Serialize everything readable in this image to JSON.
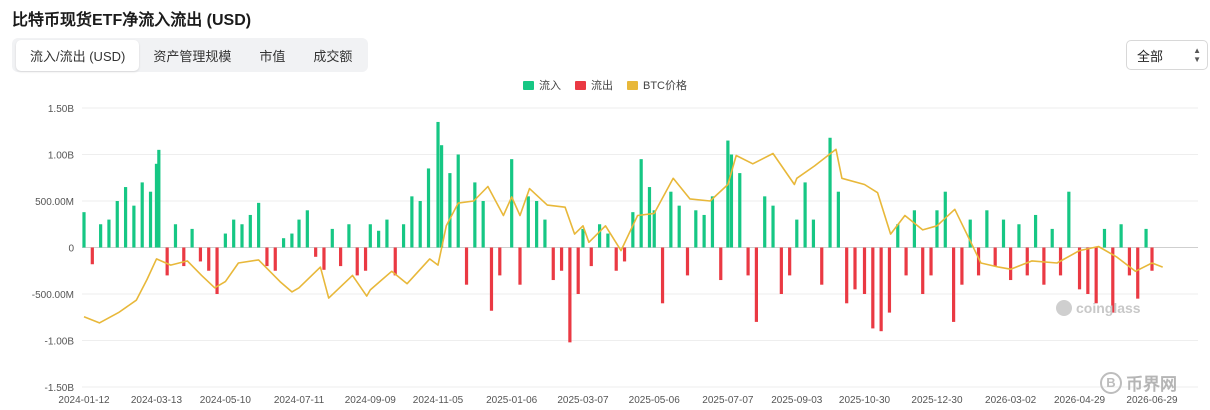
{
  "page": {
    "title": "比特币现货ETF净流入流出 (USD)"
  },
  "tabs": [
    {
      "label": "流入/流出 (USD)",
      "active": true
    },
    {
      "label": "资产管理规模",
      "active": false
    },
    {
      "label": "市值",
      "active": false
    },
    {
      "label": "成交额",
      "active": false
    }
  ],
  "filter": {
    "selected": "全部"
  },
  "legend": [
    {
      "label": "流入",
      "color": "#16c784"
    },
    {
      "label": "流出",
      "color": "#ea3943"
    },
    {
      "label": "BTC价格",
      "color": "#e8b83a"
    }
  ],
  "watermark": "coinglass",
  "logo": {
    "text": "币界网",
    "icon_text": "B"
  },
  "chart_data": {
    "type": "bar",
    "y_ticks": [
      "1.50B",
      "1.00B",
      "500.00M",
      "0",
      "-500.00M",
      "-1.00B",
      "-1.50B"
    ],
    "ylim": [
      -1500000000,
      1500000000
    ],
    "x_ticks": [
      "2024-01-12",
      "2024-03-13",
      "2024-05-10",
      "2024-07-11",
      "2024-09-09",
      "2024-11-05",
      "2025-01-06",
      "2025-03-07",
      "2025-05-06",
      "2025-07-07",
      "2025-09-03",
      "2025-10-30",
      "2025-12-30",
      "2026-03-02",
      "2026-04-29",
      "2026-06-29"
    ],
    "colors": {
      "inflow": "#16c784",
      "outflow": "#ea3943",
      "price": "#e8b83a"
    },
    "flows_musd": [
      {
        "date": "2024-01-12",
        "v": 380
      },
      {
        "date": "2024-01-19",
        "v": -180
      },
      {
        "date": "2024-01-26",
        "v": 250
      },
      {
        "date": "2024-02-02",
        "v": 300
      },
      {
        "date": "2024-02-09",
        "v": 500
      },
      {
        "date": "2024-02-16",
        "v": 650
      },
      {
        "date": "2024-02-23",
        "v": 450
      },
      {
        "date": "2024-03-01",
        "v": 700
      },
      {
        "date": "2024-03-08",
        "v": 600
      },
      {
        "date": "2024-03-13",
        "v": 900
      },
      {
        "date": "2024-03-15",
        "v": 1050
      },
      {
        "date": "2024-03-22",
        "v": -300
      },
      {
        "date": "2024-03-29",
        "v": 250
      },
      {
        "date": "2024-04-05",
        "v": -200
      },
      {
        "date": "2024-04-12",
        "v": 200
      },
      {
        "date": "2024-04-19",
        "v": -150
      },
      {
        "date": "2024-04-26",
        "v": -250
      },
      {
        "date": "2024-05-03",
        "v": -500
      },
      {
        "date": "2024-05-10",
        "v": 150
      },
      {
        "date": "2024-05-17",
        "v": 300
      },
      {
        "date": "2024-05-24",
        "v": 250
      },
      {
        "date": "2024-05-31",
        "v": 350
      },
      {
        "date": "2024-06-07",
        "v": 480
      },
      {
        "date": "2024-06-14",
        "v": -200
      },
      {
        "date": "2024-06-21",
        "v": -250
      },
      {
        "date": "2024-06-28",
        "v": 100
      },
      {
        "date": "2024-07-05",
        "v": 150
      },
      {
        "date": "2024-07-11",
        "v": 300
      },
      {
        "date": "2024-07-18",
        "v": 400
      },
      {
        "date": "2024-07-25",
        "v": -100
      },
      {
        "date": "2024-08-01",
        "v": -240
      },
      {
        "date": "2024-08-08",
        "v": 200
      },
      {
        "date": "2024-08-15",
        "v": -200
      },
      {
        "date": "2024-08-22",
        "v": 250
      },
      {
        "date": "2024-08-29",
        "v": -300
      },
      {
        "date": "2024-09-05",
        "v": -250
      },
      {
        "date": "2024-09-09",
        "v": 250
      },
      {
        "date": "2024-09-16",
        "v": 180
      },
      {
        "date": "2024-09-23",
        "v": 300
      },
      {
        "date": "2024-09-30",
        "v": -300
      },
      {
        "date": "2024-10-07",
        "v": 250
      },
      {
        "date": "2024-10-14",
        "v": 550
      },
      {
        "date": "2024-10-21",
        "v": 500
      },
      {
        "date": "2024-10-28",
        "v": 850
      },
      {
        "date": "2024-11-05",
        "v": 1350
      },
      {
        "date": "2024-11-08",
        "v": 1100
      },
      {
        "date": "2024-11-15",
        "v": 800
      },
      {
        "date": "2024-11-22",
        "v": 1000
      },
      {
        "date": "2024-11-29",
        "v": -400
      },
      {
        "date": "2024-12-06",
        "v": 700
      },
      {
        "date": "2024-12-13",
        "v": 500
      },
      {
        "date": "2024-12-20",
        "v": -680
      },
      {
        "date": "2024-12-27",
        "v": -300
      },
      {
        "date": "2025-01-06",
        "v": 950
      },
      {
        "date": "2025-01-13",
        "v": -400
      },
      {
        "date": "2025-01-20",
        "v": 550
      },
      {
        "date": "2025-01-27",
        "v": 500
      },
      {
        "date": "2025-02-03",
        "v": 300
      },
      {
        "date": "2025-02-10",
        "v": -350
      },
      {
        "date": "2025-02-17",
        "v": -250
      },
      {
        "date": "2025-02-24",
        "v": -1020
      },
      {
        "date": "2025-03-03",
        "v": -500
      },
      {
        "date": "2025-03-07",
        "v": 200
      },
      {
        "date": "2025-03-14",
        "v": -200
      },
      {
        "date": "2025-03-21",
        "v": 250
      },
      {
        "date": "2025-03-28",
        "v": 150
      },
      {
        "date": "2025-04-04",
        "v": -250
      },
      {
        "date": "2025-04-11",
        "v": -150
      },
      {
        "date": "2025-04-18",
        "v": 380
      },
      {
        "date": "2025-04-25",
        "v": 950
      },
      {
        "date": "2025-05-02",
        "v": 650
      },
      {
        "date": "2025-05-06",
        "v": 400
      },
      {
        "date": "2025-05-13",
        "v": -600
      },
      {
        "date": "2025-05-20",
        "v": 600
      },
      {
        "date": "2025-05-27",
        "v": 450
      },
      {
        "date": "2025-06-03",
        "v": -300
      },
      {
        "date": "2025-06-10",
        "v": 400
      },
      {
        "date": "2025-06-17",
        "v": 350
      },
      {
        "date": "2025-06-24",
        "v": 550
      },
      {
        "date": "2025-07-01",
        "v": -350
      },
      {
        "date": "2025-07-07",
        "v": 1150
      },
      {
        "date": "2025-07-10",
        "v": 1000
      },
      {
        "date": "2025-07-17",
        "v": 800
      },
      {
        "date": "2025-07-24",
        "v": -300
      },
      {
        "date": "2025-07-31",
        "v": -800
      },
      {
        "date": "2025-08-07",
        "v": 550
      },
      {
        "date": "2025-08-14",
        "v": 450
      },
      {
        "date": "2025-08-21",
        "v": -500
      },
      {
        "date": "2025-08-28",
        "v": -300
      },
      {
        "date": "2025-09-03",
        "v": 300
      },
      {
        "date": "2025-09-10",
        "v": 700
      },
      {
        "date": "2025-09-17",
        "v": 300
      },
      {
        "date": "2025-09-24",
        "v": -400
      },
      {
        "date": "2025-10-01",
        "v": 1180
      },
      {
        "date": "2025-10-08",
        "v": 600
      },
      {
        "date": "2025-10-15",
        "v": -600
      },
      {
        "date": "2025-10-22",
        "v": -450
      },
      {
        "date": "2025-10-30",
        "v": -500
      },
      {
        "date": "2025-11-06",
        "v": -870
      },
      {
        "date": "2025-11-13",
        "v": -900
      },
      {
        "date": "2025-11-20",
        "v": -700
      },
      {
        "date": "2025-11-27",
        "v": 250
      },
      {
        "date": "2025-12-04",
        "v": -300
      },
      {
        "date": "2025-12-11",
        "v": 400
      },
      {
        "date": "2025-12-18",
        "v": -500
      },
      {
        "date": "2025-12-25",
        "v": -300
      },
      {
        "date": "2025-12-30",
        "v": 400
      },
      {
        "date": "2026-01-06",
        "v": 600
      },
      {
        "date": "2026-01-13",
        "v": -800
      },
      {
        "date": "2026-01-20",
        "v": -400
      },
      {
        "date": "2026-01-27",
        "v": 300
      },
      {
        "date": "2026-02-03",
        "v": -300
      },
      {
        "date": "2026-02-10",
        "v": 400
      },
      {
        "date": "2026-02-17",
        "v": -200
      },
      {
        "date": "2026-02-24",
        "v": 300
      },
      {
        "date": "2026-03-02",
        "v": -350
      },
      {
        "date": "2026-03-09",
        "v": 250
      },
      {
        "date": "2026-03-16",
        "v": -300
      },
      {
        "date": "2026-03-23",
        "v": 350
      },
      {
        "date": "2026-03-30",
        "v": -400
      },
      {
        "date": "2026-04-06",
        "v": 200
      },
      {
        "date": "2026-04-13",
        "v": -300
      },
      {
        "date": "2026-04-20",
        "v": 600
      },
      {
        "date": "2026-04-29",
        "v": -450
      },
      {
        "date": "2026-05-06",
        "v": -500
      },
      {
        "date": "2026-05-13",
        "v": -600
      },
      {
        "date": "2026-05-20",
        "v": 200
      },
      {
        "date": "2026-05-27",
        "v": -700
      },
      {
        "date": "2026-06-03",
        "v": 250
      },
      {
        "date": "2026-06-10",
        "v": -300
      },
      {
        "date": "2026-06-17",
        "v": -550
      },
      {
        "date": "2026-06-24",
        "v": 200
      },
      {
        "date": "2026-06-29",
        "v": -250
      }
    ],
    "btc_price_usd": [
      {
        "date": "2024-01-12",
        "v": 44000
      },
      {
        "date": "2024-01-25",
        "v": 41000
      },
      {
        "date": "2024-02-10",
        "v": 46000
      },
      {
        "date": "2024-02-25",
        "v": 52000
      },
      {
        "date": "2024-03-05",
        "v": 62000
      },
      {
        "date": "2024-03-13",
        "v": 72000
      },
      {
        "date": "2024-03-25",
        "v": 69000
      },
      {
        "date": "2024-04-08",
        "v": 71000
      },
      {
        "date": "2024-04-20",
        "v": 64000
      },
      {
        "date": "2024-05-01",
        "v": 58000
      },
      {
        "date": "2024-05-10",
        "v": 61000
      },
      {
        "date": "2024-05-21",
        "v": 70000
      },
      {
        "date": "2024-06-07",
        "v": 71500
      },
      {
        "date": "2024-06-25",
        "v": 61000
      },
      {
        "date": "2024-07-05",
        "v": 56000
      },
      {
        "date": "2024-07-11",
        "v": 58000
      },
      {
        "date": "2024-07-29",
        "v": 68000
      },
      {
        "date": "2024-08-05",
        "v": 53000
      },
      {
        "date": "2024-08-25",
        "v": 64000
      },
      {
        "date": "2024-09-06",
        "v": 54000
      },
      {
        "date": "2024-09-09",
        "v": 57000
      },
      {
        "date": "2024-09-27",
        "v": 66000
      },
      {
        "date": "2024-10-10",
        "v": 60000
      },
      {
        "date": "2024-10-29",
        "v": 72000
      },
      {
        "date": "2024-11-05",
        "v": 69000
      },
      {
        "date": "2024-11-12",
        "v": 88000
      },
      {
        "date": "2024-11-22",
        "v": 99000
      },
      {
        "date": "2024-12-05",
        "v": 100000
      },
      {
        "date": "2024-12-17",
        "v": 107000
      },
      {
        "date": "2024-12-30",
        "v": 93000
      },
      {
        "date": "2025-01-06",
        "v": 102000
      },
      {
        "date": "2025-01-13",
        "v": 93000
      },
      {
        "date": "2025-01-21",
        "v": 106000
      },
      {
        "date": "2025-02-05",
        "v": 98000
      },
      {
        "date": "2025-02-20",
        "v": 97000
      },
      {
        "date": "2025-02-28",
        "v": 84000
      },
      {
        "date": "2025-03-07",
        "v": 88000
      },
      {
        "date": "2025-03-12",
        "v": 80000
      },
      {
        "date": "2025-03-26",
        "v": 88000
      },
      {
        "date": "2025-04-08",
        "v": 76000
      },
      {
        "date": "2025-04-22",
        "v": 93000
      },
      {
        "date": "2025-05-06",
        "v": 94000
      },
      {
        "date": "2025-05-22",
        "v": 111000
      },
      {
        "date": "2025-06-05",
        "v": 101000
      },
      {
        "date": "2025-06-22",
        "v": 100000
      },
      {
        "date": "2025-07-07",
        "v": 108000
      },
      {
        "date": "2025-07-14",
        "v": 122000
      },
      {
        "date": "2025-07-28",
        "v": 118000
      },
      {
        "date": "2025-08-14",
        "v": 123000
      },
      {
        "date": "2025-09-01",
        "v": 108000
      },
      {
        "date": "2025-09-03",
        "v": 111000
      },
      {
        "date": "2025-09-18",
        "v": 117000
      },
      {
        "date": "2025-10-06",
        "v": 125000
      },
      {
        "date": "2025-10-11",
        "v": 111000
      },
      {
        "date": "2025-10-30",
        "v": 108000
      },
      {
        "date": "2025-11-10",
        "v": 104000
      },
      {
        "date": "2025-11-21",
        "v": 84000
      },
      {
        "date": "2025-12-03",
        "v": 93000
      },
      {
        "date": "2025-12-18",
        "v": 86000
      },
      {
        "date": "2025-12-30",
        "v": 88000
      },
      {
        "date": "2026-01-14",
        "v": 96000
      },
      {
        "date": "2026-02-05",
        "v": 70000
      },
      {
        "date": "2026-02-20",
        "v": 68000
      },
      {
        "date": "2026-03-02",
        "v": 67000
      },
      {
        "date": "2026-03-20",
        "v": 71000
      },
      {
        "date": "2026-04-10",
        "v": 70000
      },
      {
        "date": "2026-04-29",
        "v": 76000
      },
      {
        "date": "2026-05-15",
        "v": 78000
      },
      {
        "date": "2026-05-30",
        "v": 73000
      },
      {
        "date": "2026-06-15",
        "v": 66000
      },
      {
        "date": "2026-06-29",
        "v": 70000
      },
      {
        "date": "2026-07-08",
        "v": 68000
      }
    ],
    "btc_price_range": [
      10000,
      145000
    ]
  }
}
